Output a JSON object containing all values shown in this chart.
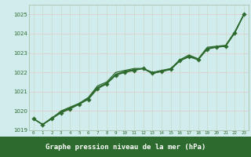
{
  "x": [
    0,
    1,
    2,
    3,
    4,
    5,
    6,
    7,
    8,
    9,
    10,
    11,
    12,
    13,
    14,
    15,
    16,
    17,
    18,
    19,
    20,
    21,
    22,
    23
  ],
  "line1": [
    1019.6,
    1019.3,
    1019.6,
    1019.9,
    1020.1,
    1020.35,
    1020.6,
    1021.15,
    1021.4,
    1021.85,
    1022.0,
    1022.1,
    1022.2,
    1021.95,
    1022.05,
    1022.15,
    1022.6,
    1022.8,
    1022.65,
    1023.2,
    1023.3,
    1023.35,
    1024.05,
    1025.0
  ],
  "line2": [
    1019.6,
    1019.3,
    1019.6,
    1020.0,
    1020.2,
    1020.4,
    1020.7,
    1021.3,
    1021.5,
    1022.0,
    1022.1,
    1022.2,
    1022.2,
    1022.0,
    1022.1,
    1022.2,
    1022.65,
    1022.9,
    1022.7,
    1023.3,
    1023.35,
    1023.4,
    1024.1,
    1025.0
  ],
  "line3": [
    1019.6,
    1019.3,
    1019.65,
    1019.95,
    1020.15,
    1020.35,
    1020.65,
    1021.2,
    1021.45,
    1021.9,
    1022.05,
    1022.15,
    1022.2,
    1021.95,
    1022.05,
    1022.15,
    1022.6,
    1022.82,
    1022.68,
    1023.25,
    1023.32,
    1023.37,
    1024.07,
    1025.0
  ],
  "line4": [
    1019.6,
    1019.3,
    1019.6,
    1019.95,
    1020.15,
    1020.37,
    1020.65,
    1021.22,
    1021.42,
    1021.88,
    1022.02,
    1022.12,
    1022.2,
    1021.93,
    1022.07,
    1022.17,
    1022.62,
    1022.83,
    1022.67,
    1023.22,
    1023.31,
    1023.36,
    1024.03,
    1025.0
  ],
  "ylim": [
    1019.0,
    1025.5
  ],
  "yticks": [
    1019,
    1020,
    1021,
    1022,
    1023,
    1024,
    1025
  ],
  "xlim": [
    -0.5,
    23.5
  ],
  "xticks": [
    0,
    1,
    2,
    3,
    4,
    5,
    6,
    7,
    8,
    9,
    10,
    11,
    12,
    13,
    14,
    15,
    16,
    17,
    18,
    19,
    20,
    21,
    22,
    23
  ],
  "line_color": "#2d6a2d",
  "marker_color": "#2d6a2d",
  "bg_color": "#d0ecec",
  "grid_color_h": "#e8c8c8",
  "grid_color_v": "#c8d8c8",
  "xlabel": "Graphe pression niveau de la mer (hPa)",
  "xlabel_bg": "#2d6a2d",
  "xlabel_fg": "#ffffff"
}
